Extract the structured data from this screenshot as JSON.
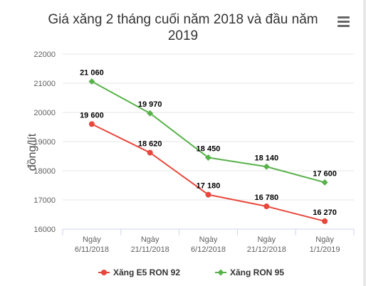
{
  "menu_icon": "hamburger-menu-icon",
  "chart_data": {
    "type": "line",
    "title_lines": [
      "Giá xăng 2 tháng cuối năm 2018 và đầu năm",
      "2019"
    ],
    "ylabel": "đồng/lít",
    "xlabel": "",
    "categories": [
      [
        "Ngày",
        "6/11/2018"
      ],
      [
        "Ngày",
        "21/11/2018"
      ],
      [
        "Ngày",
        "6/12/2018"
      ],
      [
        "Ngày",
        "21/12/2018"
      ],
      [
        "Ngày",
        "1/1/2019"
      ]
    ],
    "y_ticks": [
      "16000",
      "17000",
      "18000",
      "19000",
      "20000",
      "21000",
      "22000"
    ],
    "ylim": [
      16000,
      22000
    ],
    "grid": true,
    "legend_position": "bottom",
    "series": [
      {
        "name": "Xăng E5 RON 92",
        "color": "#e8473c",
        "marker": "circle",
        "values": [
          19600,
          18620,
          17180,
          16780,
          16270
        ],
        "labels": [
          "19 600",
          "18 620",
          "17 180",
          "16 780",
          "16 270"
        ]
      },
      {
        "name": "Xăng RON 95",
        "color": "#58b24a",
        "marker": "diamond",
        "values": [
          21060,
          19970,
          18450,
          18140,
          17600
        ],
        "labels": [
          "21 060",
          "19 970",
          "18 450",
          "18 140",
          "17 600"
        ]
      }
    ]
  }
}
